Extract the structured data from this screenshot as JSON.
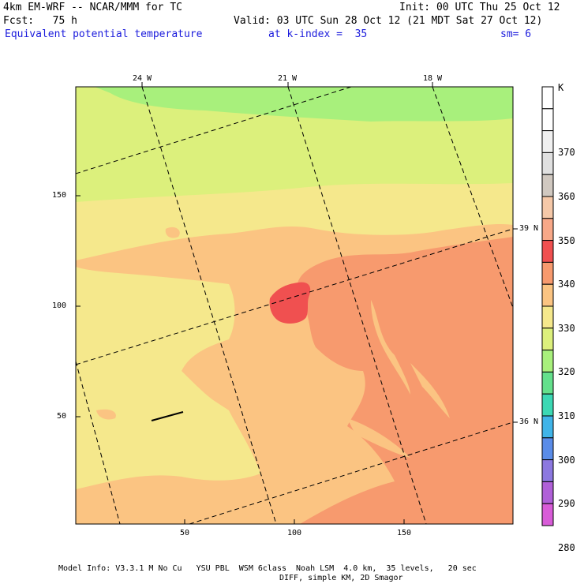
{
  "header": {
    "line1_left": "4km EM-WRF -- NCAR/MMM for TC",
    "line1_right": "Init: 00 UTC Thu 25 Oct 12",
    "line2_left": "Fcst:   75 h",
    "line2_right": "Valid: 03 UTC Sun 28 Oct 12 (21 MDT Sat 27 Oct 12)",
    "field": "Equivalent potential temperature",
    "level": "at k-index =  35",
    "smooth": "sm= 6"
  },
  "axes": {
    "y_ticks": [
      "150",
      "100",
      "50"
    ],
    "x_ticks": [
      "50",
      "100",
      "150"
    ],
    "lon_labels": [
      "24 W",
      "21 W",
      "18 W"
    ],
    "lat_labels": [
      "39 N",
      "36 N"
    ]
  },
  "colorbar": {
    "unit": "K",
    "labels": [
      "370",
      "360",
      "350",
      "340",
      "330",
      "320",
      "310",
      "300",
      "290",
      "280"
    ],
    "colors": [
      "#ffffff",
      "#ffffff",
      "#f0f0f0",
      "#e0e0e0",
      "#d0c8c0",
      "#f5c8a8",
      "#f8a888",
      "#f05050",
      "#f79a6e",
      "#fbc482",
      "#f5e88c",
      "#dcf07c",
      "#a8f07c",
      "#64e08c",
      "#3cd8b4",
      "#40b4e8",
      "#5a8ce8",
      "#8c78e0",
      "#b060d8",
      "#d85cd8"
    ]
  },
  "footer": {
    "line1": "Model Info: V3.3.1 M No Cu   YSU PBL  WSM 6class  Noah LSM  4.0 km,  35 levels,   20 sec",
    "line2": "DIFF, simple KM, 2D Smagor"
  }
}
